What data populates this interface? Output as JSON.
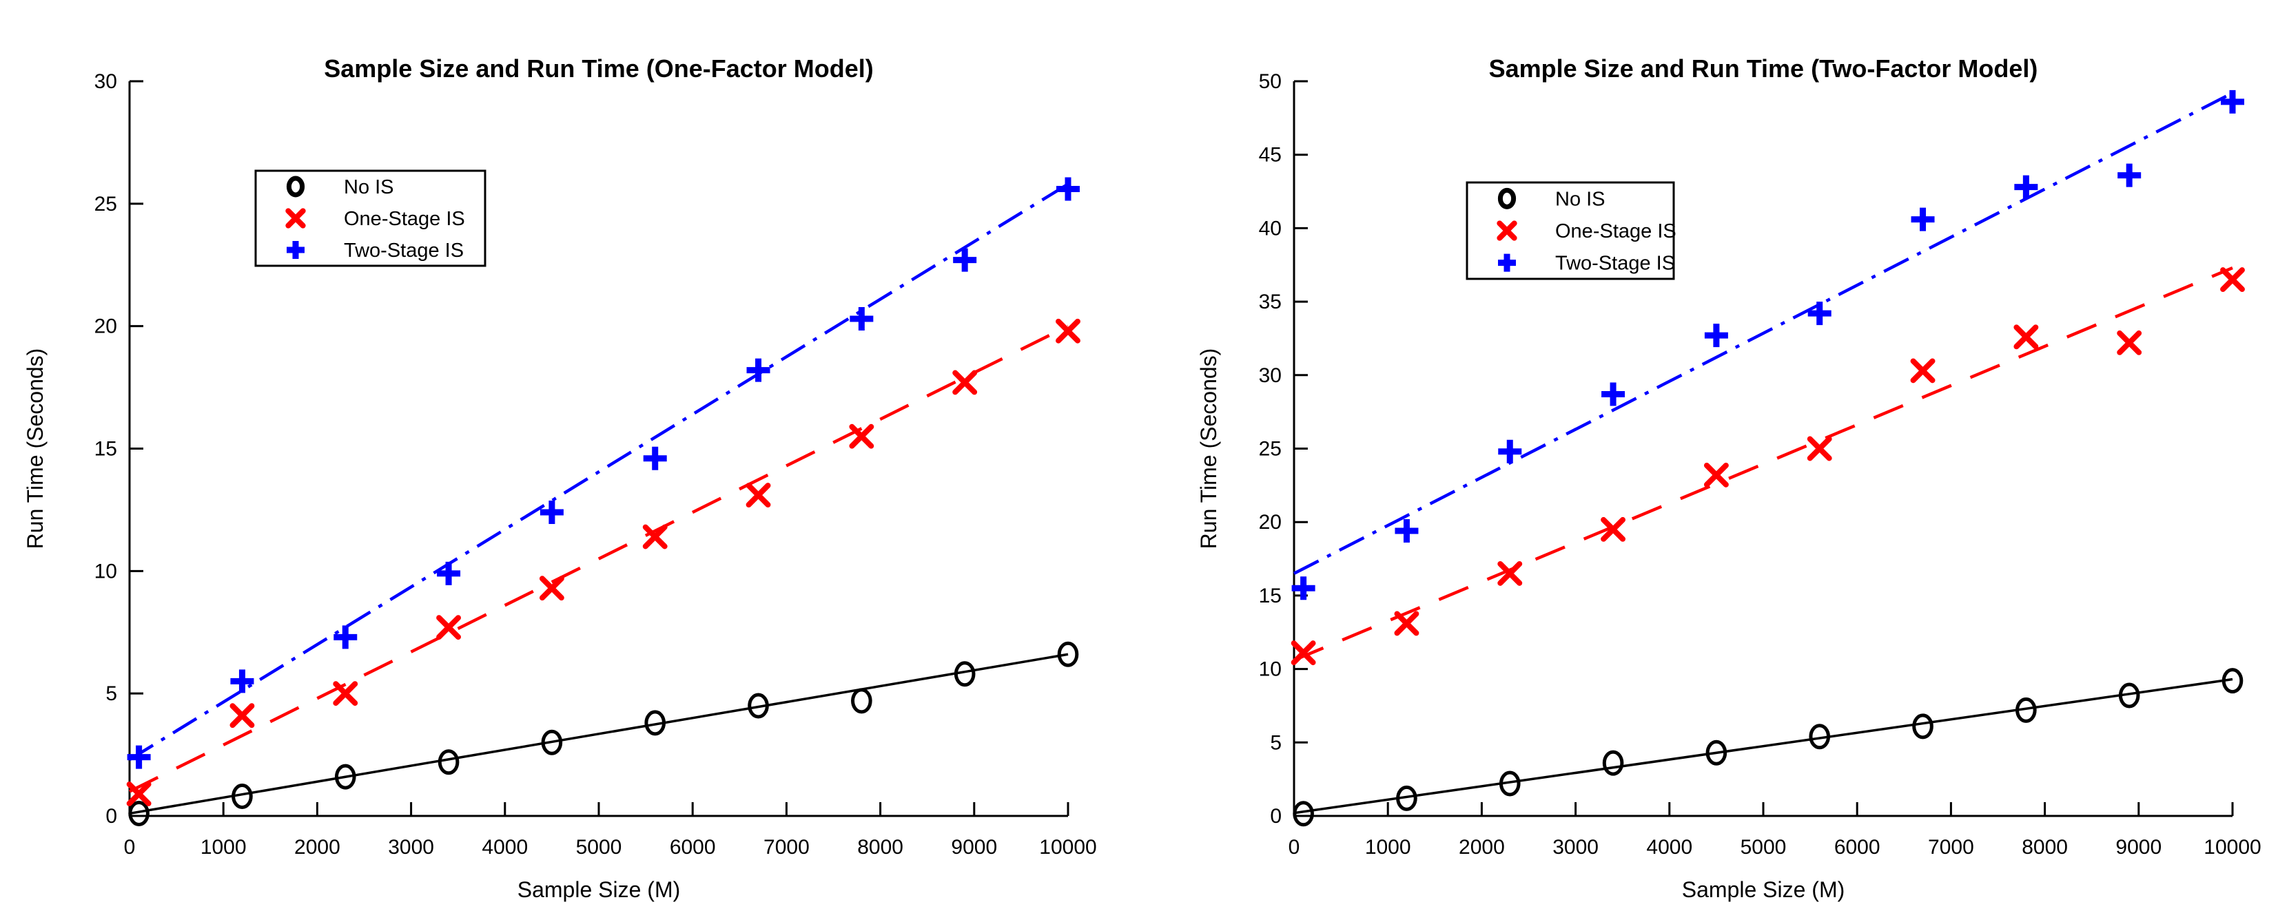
{
  "figure": {
    "background": "#ffffff",
    "axis_color": "#000000"
  },
  "chart_data": [
    {
      "type": "scatter",
      "title": "Sample Size and Run Time (One-Factor Model)",
      "xlabel": "Sample Size (M)",
      "ylabel": "Run Time (Seconds)",
      "xlim": [
        0,
        10000
      ],
      "ylim": [
        0,
        30
      ],
      "xticks": [
        0,
        1000,
        2000,
        3000,
        4000,
        5000,
        6000,
        7000,
        8000,
        9000,
        10000
      ],
      "yticks": [
        0,
        5,
        10,
        15,
        20,
        25,
        30
      ],
      "grid": false,
      "legend": {
        "position": "upper-left",
        "entries": [
          "No IS",
          "One-Stage IS",
          "Two-Stage IS"
        ]
      },
      "x": [
        100,
        1200,
        2300,
        3400,
        4500,
        5600,
        6700,
        7800,
        8900,
        10000
      ],
      "series": [
        {
          "name": "No IS",
          "marker": "circle",
          "color": "#000000",
          "line_style": "solid",
          "values": [
            0.1,
            0.8,
            1.6,
            2.2,
            3.0,
            3.8,
            4.5,
            4.7,
            5.8,
            6.6
          ],
          "fit_line": {
            "x": [
              0,
              10000
            ],
            "y": [
              0.1,
              6.6
            ]
          }
        },
        {
          "name": "One-Stage IS",
          "marker": "x",
          "color": "#ff0000",
          "line_style": "dashed",
          "values": [
            0.9,
            4.1,
            5.0,
            7.7,
            9.3,
            11.4,
            13.1,
            15.5,
            17.7,
            19.8
          ],
          "fit_line": {
            "x": [
              0,
              10000
            ],
            "y": [
              1.0,
              20.0
            ]
          }
        },
        {
          "name": "Two-Stage IS",
          "marker": "plus",
          "color": "#0000ff",
          "line_style": "dashdot",
          "values": [
            2.4,
            5.5,
            7.3,
            9.9,
            12.4,
            14.6,
            18.2,
            20.3,
            22.7,
            25.6
          ],
          "fit_line": {
            "x": [
              0,
              10000
            ],
            "y": [
              2.3,
              25.8
            ]
          }
        }
      ]
    },
    {
      "type": "scatter",
      "title": "Sample Size and Run Time (Two-Factor Model)",
      "xlabel": "Sample Size (M)",
      "ylabel": "Run Time (Seconds)",
      "xlim": [
        0,
        10000
      ],
      "ylim": [
        0,
        50
      ],
      "xticks": [
        0,
        1000,
        2000,
        3000,
        4000,
        5000,
        6000,
        7000,
        8000,
        9000,
        10000
      ],
      "yticks": [
        0,
        5,
        10,
        15,
        20,
        25,
        30,
        35,
        40,
        45,
        50
      ],
      "grid": false,
      "legend": {
        "position": "upper-left",
        "entries": [
          "No IS",
          "One-Stage IS",
          "Two-Stage IS"
        ]
      },
      "x": [
        100,
        1200,
        2300,
        3400,
        4500,
        5600,
        6700,
        7800,
        8900,
        10000
      ],
      "series": [
        {
          "name": "No IS",
          "marker": "circle",
          "color": "#000000",
          "line_style": "solid",
          "values": [
            0.15,
            1.2,
            2.2,
            3.6,
            4.3,
            5.4,
            6.1,
            7.2,
            8.2,
            9.2
          ],
          "fit_line": {
            "x": [
              0,
              10000
            ],
            "y": [
              0.2,
              9.3
            ]
          }
        },
        {
          "name": "One-Stage IS",
          "marker": "x",
          "color": "#ff0000",
          "line_style": "dashed",
          "values": [
            11.1,
            13.1,
            16.5,
            19.5,
            23.2,
            25.0,
            30.3,
            32.6,
            32.2,
            36.5
          ],
          "fit_line": {
            "x": [
              0,
              10000
            ],
            "y": [
              10.6,
              37.3
            ]
          }
        },
        {
          "name": "Two-Stage IS",
          "marker": "plus",
          "color": "#0000ff",
          "line_style": "dashdot",
          "values": [
            15.5,
            19.4,
            24.8,
            28.7,
            32.7,
            34.2,
            40.6,
            42.8,
            43.6,
            48.6
          ],
          "fit_line": {
            "x": [
              0,
              10000
            ],
            "y": [
              16.5,
              49.2
            ]
          }
        }
      ]
    }
  ]
}
